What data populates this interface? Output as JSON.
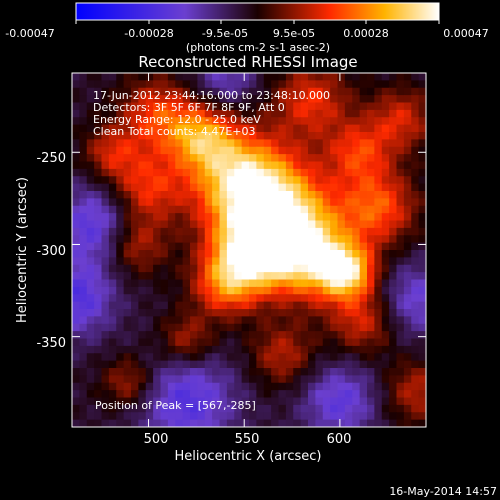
{
  "colorbar": {
    "ticks": [
      "-0.00047",
      "-0.00028",
      "-9.5e-05",
      "9.5e-05",
      "0.00028",
      "0.00047"
    ],
    "unit_label": "(photons cm-2 s-1 asec-2)",
    "range": [
      -0.00047,
      0.00047
    ]
  },
  "chart_data": {
    "type": "heatmap",
    "title": "Reconstructed RHESSI Image",
    "xlabel": "Heliocentric X (arcsec)",
    "ylabel": "Heliocentric Y (arcsec)",
    "x_ticks": [
      "500",
      "550",
      "600"
    ],
    "y_ticks": [
      "-250",
      "-300",
      "-350"
    ],
    "xlim": [
      460,
      645
    ],
    "ylim": [
      -399,
      -207
    ],
    "annotations": [
      "17-Jun-2012 23:44:16.000 to 23:48:10.000",
      "Detectors: 3F 5F 6F 7F 8F 9F, Att 0",
      "Energy Range: 12.0 - 25.0 keV",
      "Clean    Total counts: 4.47E+03"
    ],
    "peak_label": "Position of Peak = [567,-285]",
    "peak": [
      567,
      -285
    ],
    "hotspots": [
      {
        "x": 567,
        "y": -285,
        "v": 1.0,
        "s": 20
      },
      {
        "x": 547,
        "y": -263,
        "v": 0.75,
        "s": 18
      },
      {
        "x": 528,
        "y": -242,
        "v": 0.6,
        "s": 12
      },
      {
        "x": 585,
        "y": -308,
        "v": 0.7,
        "s": 16
      },
      {
        "x": 604,
        "y": -315,
        "v": 0.8,
        "s": 10
      },
      {
        "x": 553,
        "y": -305,
        "v": 0.7,
        "s": 14
      },
      {
        "x": 540,
        "y": -322,
        "v": 0.55,
        "s": 12
      },
      {
        "x": 498,
        "y": -270,
        "v": 0.5,
        "s": 14
      },
      {
        "x": 492,
        "y": -300,
        "v": 0.45,
        "s": 12
      },
      {
        "x": 505,
        "y": -230,
        "v": 0.5,
        "s": 14
      },
      {
        "x": 620,
        "y": -280,
        "v": 0.55,
        "s": 14
      },
      {
        "x": 610,
        "y": -250,
        "v": 0.45,
        "s": 12
      },
      {
        "x": 585,
        "y": -222,
        "v": 0.45,
        "s": 14
      },
      {
        "x": 632,
        "y": -232,
        "v": 0.4,
        "s": 12
      },
      {
        "x": 480,
        "y": -250,
        "v": 0.35,
        "s": 10
      },
      {
        "x": 520,
        "y": -352,
        "v": 0.35,
        "s": 10
      },
      {
        "x": 570,
        "y": -360,
        "v": 0.35,
        "s": 12
      },
      {
        "x": 612,
        "y": -342,
        "v": 0.4,
        "s": 12
      },
      {
        "x": 490,
        "y": -375,
        "v": 0.35,
        "s": 10
      },
      {
        "x": 640,
        "y": -380,
        "v": 0.35,
        "s": 12
      }
    ],
    "coldspots": [
      {
        "x": 475,
        "y": -290,
        "v": -0.5,
        "s": 16
      },
      {
        "x": 520,
        "y": -385,
        "v": -0.45,
        "s": 18
      },
      {
        "x": 462,
        "y": -330,
        "v": -0.45,
        "s": 14
      },
      {
        "x": 600,
        "y": -385,
        "v": -0.4,
        "s": 14
      },
      {
        "x": 640,
        "y": -330,
        "v": -0.35,
        "s": 14
      },
      {
        "x": 540,
        "y": -210,
        "v": -0.3,
        "s": 12
      }
    ]
  },
  "footer": {
    "date": "16-May-2014 14:57"
  }
}
